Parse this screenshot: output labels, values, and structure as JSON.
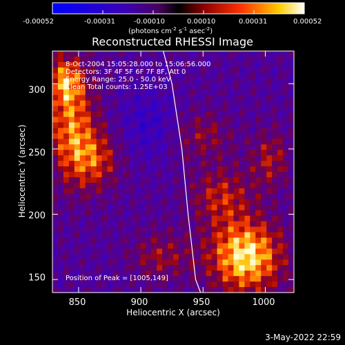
{
  "colorbar": {
    "ticks": [
      "-0.00052",
      "-0.00031",
      "-0.00010",
      "0.00010",
      "0.00031",
      "0.00052"
    ],
    "unit_text": "(photons cm",
    "unit_exp1": "-2",
    "unit_mid1": " s",
    "unit_exp2": "-1",
    "unit_mid2": " asec",
    "unit_exp3": "-2",
    "unit_end": ")",
    "colors": [
      "#0000ff",
      "#3a00b8",
      "#5a0070",
      "#000000",
      "#8a0000",
      "#ff3300",
      "#ffcc00",
      "#ffffff"
    ]
  },
  "chart_data": {
    "type": "heatmap",
    "title": "Reconstructed RHESSI Image",
    "xlabel": "Heliocentric X (arcsec)",
    "ylabel": "Heliocentric Y (arcsec)",
    "xlim": [
      829,
      1023
    ],
    "ylim": [
      140,
      325
    ],
    "xticks": [
      "850",
      "900",
      "950",
      "1000"
    ],
    "yticks": [
      "150",
      "200",
      "250",
      "300"
    ],
    "xtick_values": [
      850,
      900,
      950,
      1000
    ],
    "ytick_values": [
      150,
      200,
      250,
      300
    ],
    "value_range": [
      -0.00052,
      0.00052
    ],
    "peak": [
      1005,
      149
    ],
    "limb_line": [
      [
        918,
        325
      ],
      [
        925,
        300
      ],
      [
        933,
        250
      ],
      [
        938,
        200
      ],
      [
        944,
        150
      ],
      [
        948,
        140
      ]
    ],
    "annotations": [
      " 8-Oct-2004 15:05:28.000 to 15:06:56.000",
      "Detectors: 3F 4F 5F 6F 7F 8F, Att 0",
      "Energy Range: 25.0 - 50.0 keV",
      "Clean     Total counts: 1.25E+03"
    ],
    "peak_label": "Position of Peak = [1005,149]"
  },
  "footer": {
    "date": "3-May-2022 22:59"
  }
}
